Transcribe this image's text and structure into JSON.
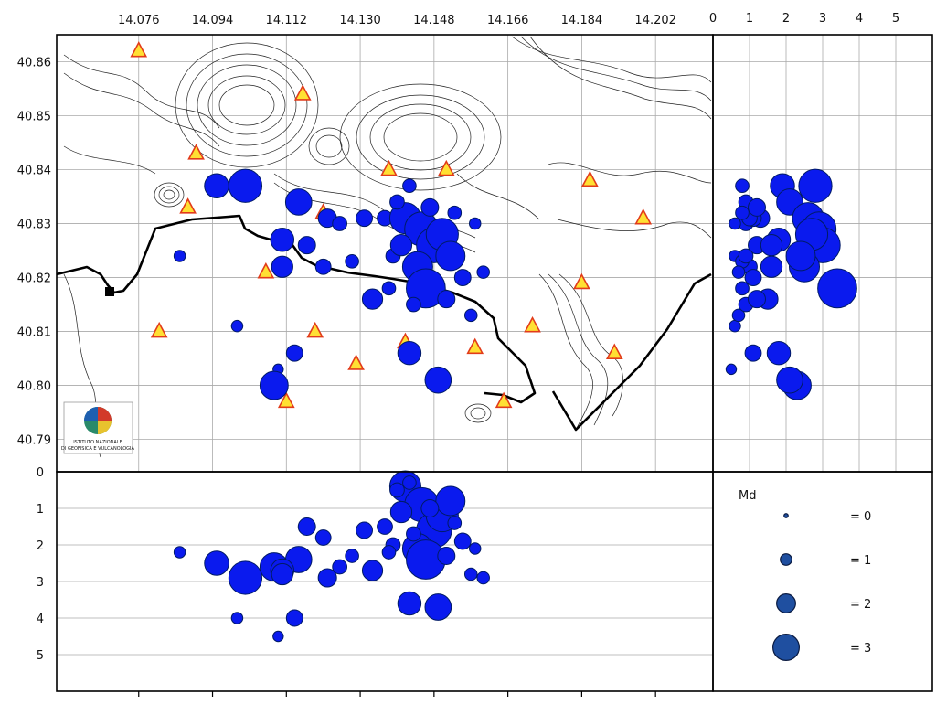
{
  "colors": {
    "quake_fill": "#0a1aee",
    "quake_stroke": "#001a66",
    "station_fill": "#ffe033",
    "station_stroke": "#e23b1a",
    "legend_fill": "#1f4fa0"
  },
  "logo_icon": "ingv-globe-logo",
  "logo_text": [
    "ISTITUTO NAZIONALE",
    "DI GEOFISICA E VULCANOLOGIA"
  ],
  "map": {
    "lon_ticks": [
      "14.076",
      "14.094",
      "14.112",
      "14.130",
      "14.148",
      "14.166",
      "14.184",
      "14.202"
    ],
    "lat_ticks": [
      "40.86",
      "40.85",
      "40.84",
      "40.83",
      "40.82",
      "40.81",
      "40.80",
      "40.79"
    ],
    "lon_range": [
      14.056,
      14.216
    ],
    "lat_range": [
      40.784,
      40.865
    ]
  },
  "depth_axis": {
    "ticks": [
      "0",
      "1",
      "2",
      "3",
      "4",
      "5"
    ],
    "range": [
      0,
      6
    ]
  },
  "magnitude_axis": {
    "ticks": [
      "0",
      "1",
      "2",
      "3",
      "4",
      "5"
    ],
    "range": [
      0,
      6
    ]
  },
  "legend": {
    "title": "Md",
    "items": [
      {
        "label": "= 0",
        "md": 0
      },
      {
        "label": "= 1",
        "md": 1
      },
      {
        "label": "= 2",
        "md": 2
      },
      {
        "label": "= 3",
        "md": 3
      }
    ]
  },
  "stations": [
    [
      14.076,
      40.862
    ],
    [
      14.088,
      40.833
    ],
    [
      14.09,
      40.843
    ],
    [
      14.107,
      40.821
    ],
    [
      14.112,
      40.797
    ],
    [
      14.116,
      40.854
    ],
    [
      14.119,
      40.81
    ],
    [
      14.121,
      40.832
    ],
    [
      14.129,
      40.804
    ],
    [
      14.137,
      40.84
    ],
    [
      14.141,
      40.808
    ],
    [
      14.151,
      40.84
    ],
    [
      14.158,
      40.807
    ],
    [
      14.165,
      40.797
    ],
    [
      14.172,
      40.811
    ],
    [
      14.184,
      40.819
    ],
    [
      14.186,
      40.838
    ],
    [
      14.192,
      40.806
    ],
    [
      14.199,
      40.831
    ],
    [
      14.081,
      40.81
    ]
  ],
  "earthquakes": [
    [
      14.095,
      40.837,
      2.5,
      1.9
    ],
    [
      14.102,
      40.837,
      2.9,
      2.8
    ],
    [
      14.086,
      40.824,
      2.2,
      0.6
    ],
    [
      14.1,
      40.811,
      4.0,
      0.6
    ],
    [
      14.11,
      40.803,
      4.5,
      0.5
    ],
    [
      14.109,
      40.8,
      2.6,
      2.3
    ],
    [
      14.114,
      40.806,
      4.0,
      1.1
    ],
    [
      14.115,
      40.834,
      2.4,
      2.1
    ],
    [
      14.111,
      40.827,
      2.7,
      1.8
    ],
    [
      14.111,
      40.822,
      2.8,
      1.6
    ],
    [
      14.117,
      40.826,
      1.5,
      1.2
    ],
    [
      14.121,
      40.822,
      1.8,
      1.0
    ],
    [
      14.122,
      40.831,
      2.9,
      1.3
    ],
    [
      14.125,
      40.83,
      2.6,
      0.9
    ],
    [
      14.128,
      40.823,
      2.3,
      0.8
    ],
    [
      14.131,
      40.831,
      1.6,
      1.1
    ],
    [
      14.133,
      40.816,
      2.7,
      1.5
    ],
    [
      14.136,
      40.831,
      1.5,
      1.0
    ],
    [
      14.138,
      40.824,
      2.0,
      0.9
    ],
    [
      14.141,
      40.831,
      0.4,
      2.6
    ],
    [
      14.145,
      40.829,
      0.9,
      2.9
    ],
    [
      14.148,
      40.826,
      1.6,
      3.0
    ],
    [
      14.144,
      40.822,
      2.1,
      2.5
    ],
    [
      14.15,
      40.828,
      1.2,
      2.7
    ],
    [
      14.152,
      40.824,
      0.8,
      2.4
    ],
    [
      14.146,
      40.818,
      2.4,
      3.4
    ],
    [
      14.142,
      40.806,
      3.6,
      1.8
    ],
    [
      14.149,
      40.801,
      3.7,
      2.1
    ],
    [
      14.157,
      40.813,
      2.8,
      0.7
    ],
    [
      14.155,
      40.82,
      1.9,
      1.1
    ],
    [
      14.139,
      40.834,
      0.5,
      0.9
    ],
    [
      14.142,
      40.837,
      0.3,
      0.8
    ],
    [
      14.147,
      40.833,
      1.0,
      1.2
    ],
    [
      14.153,
      40.832,
      1.4,
      0.8
    ],
    [
      14.158,
      40.83,
      2.1,
      0.6
    ],
    [
      14.16,
      40.821,
      2.9,
      0.7
    ],
    [
      14.137,
      40.818,
      2.2,
      0.8
    ],
    [
      14.143,
      40.815,
      1.7,
      0.9
    ],
    [
      14.151,
      40.816,
      2.3,
      1.2
    ],
    [
      14.14,
      40.826,
      1.1,
      1.6
    ]
  ]
}
